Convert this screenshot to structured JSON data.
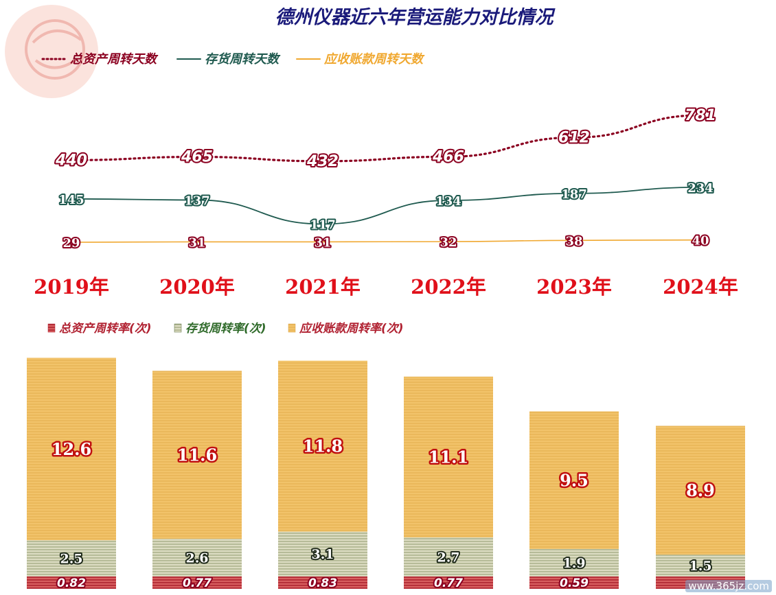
{
  "title": "德州仪器近六年营运能力对比情况",
  "watermark": "www.365jz.com",
  "colors": {
    "title": "#1a1a7a",
    "total": "#8b0020",
    "inventory": "#1f5a4f",
    "receivable": "#f0a830",
    "year": "#e0101a",
    "bar_total": "#b02030",
    "bar_inventory": "#b7bd98",
    "bar_receivable": "#f2c36a"
  },
  "chart_data": [
    {
      "type": "line",
      "categories": [
        "2019年",
        "2020年",
        "2021年",
        "2022年",
        "2023年",
        "2024年"
      ],
      "series": [
        {
          "name": "总资产周转天数",
          "values": [
            440,
            465,
            432,
            466,
            612,
            781
          ],
          "color": "#8b0020",
          "style": "dotted"
        },
        {
          "name": "存货周转天数",
          "values": [
            145,
            137,
            117,
            134,
            187,
            234
          ],
          "color": "#1f5a4f",
          "style": "solid"
        },
        {
          "name": "应收账款周转天数",
          "values": [
            29,
            31,
            31,
            32,
            38,
            40
          ],
          "color": "#f0a830",
          "style": "solid"
        }
      ],
      "legend_position": "top-left",
      "grid": false
    },
    {
      "type": "bar",
      "stacked": true,
      "categories": [
        "2019年",
        "2020年",
        "2021年",
        "2022年",
        "2023年",
        "2024年"
      ],
      "series": [
        {
          "name": "总资产周转率(次)",
          "values": [
            0.82,
            0.77,
            0.83,
            0.77,
            0.59,
            0.58
          ],
          "labels": [
            "0.82",
            "0.77",
            "0.83",
            "0.77",
            "0.59",
            ""
          ],
          "color": "#b02030"
        },
        {
          "name": "存货周转率(次)",
          "values": [
            2.5,
            2.6,
            3.1,
            2.7,
            1.9,
            1.5
          ],
          "labels": [
            "2.5",
            "2.6",
            "3.1",
            "2.7",
            "1.9",
            "1.5"
          ],
          "color": "#b7bd98"
        },
        {
          "name": "应收账款周转率(次)",
          "values": [
            12.6,
            11.6,
            11.8,
            11.1,
            9.5,
            8.9
          ],
          "labels": [
            "12.6",
            "11.6",
            "11.8",
            "11.1",
            "9.5",
            "8.9"
          ],
          "color": "#f2c36a"
        }
      ],
      "legend_position": "top-left",
      "grid": false
    }
  ]
}
